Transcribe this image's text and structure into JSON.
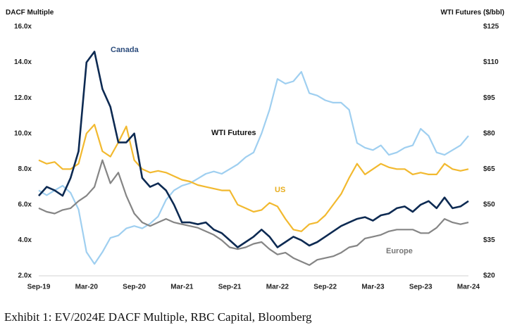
{
  "chart_data": {
    "type": "line",
    "caption": "Exhibit 1: EV/2024E DACF Multiple, RBC Capital, Bloomberg",
    "y_label": "DACF Multiple",
    "y2_label": "WTI Futures ($/bbl)",
    "categories": [
      "Sep-19",
      null,
      null,
      null,
      null,
      null,
      "Mar-20",
      null,
      null,
      null,
      null,
      null,
      "Sep-20",
      null,
      null,
      null,
      null,
      null,
      "Mar-21",
      null,
      null,
      null,
      null,
      null,
      "Sep-21",
      null,
      null,
      null,
      null,
      null,
      "Mar-22",
      null,
      null,
      null,
      null,
      null,
      "Sep-22",
      null,
      null,
      null,
      null,
      null,
      "Mar-23",
      null,
      null,
      null,
      null,
      null,
      "Sep-23",
      null,
      null,
      null,
      null,
      null,
      "Mar-24"
    ],
    "ylim": [
      2,
      16
    ],
    "yticks": [
      {
        "value": 2,
        "label": "2.0x"
      },
      {
        "value": 4,
        "label": "4.0x"
      },
      {
        "value": 6,
        "label": "6.0x"
      },
      {
        "value": 8,
        "label": "8.0x"
      },
      {
        "value": 10,
        "label": "10.0x"
      },
      {
        "value": 12,
        "label": "12.0x"
      },
      {
        "value": 14,
        "label": "14.0x"
      },
      {
        "value": 16,
        "label": "16.0x"
      }
    ],
    "y2lim": [
      20,
      125
    ],
    "y2ticks": [
      {
        "value": 20,
        "label": "$20"
      },
      {
        "value": 35,
        "label": "$35"
      },
      {
        "value": 50,
        "label": "$50"
      },
      {
        "value": 65,
        "label": "$65"
      },
      {
        "value": 80,
        "label": "$80"
      },
      {
        "value": 95,
        "label": "$95"
      },
      {
        "value": 110,
        "label": "$110"
      },
      {
        "value": 125,
        "label": "$125"
      }
    ],
    "grid": false,
    "series": [
      {
        "name": "WTI Futures",
        "color": "#9fcff0",
        "axis": "y2",
        "values": [
          56,
          54,
          56,
          58,
          55,
          48,
          30,
          25,
          30,
          36,
          37,
          40,
          41,
          40,
          42,
          45,
          52,
          56,
          58,
          59,
          61,
          63,
          64,
          63,
          65,
          67,
          70,
          72,
          80,
          90,
          103,
          101,
          102,
          106,
          97,
          96,
          94,
          93,
          93,
          90,
          76,
          74,
          73,
          75,
          71,
          72,
          74,
          75,
          82,
          79,
          72,
          71,
          73,
          75,
          79
        ]
      },
      {
        "name": "Europe",
        "color": "#858585",
        "values": [
          5.8,
          5.6,
          5.5,
          5.7,
          5.8,
          6.2,
          6.5,
          7.0,
          8.5,
          7.2,
          7.8,
          6.5,
          5.5,
          5.0,
          4.8,
          5.0,
          5.2,
          5.0,
          4.9,
          4.8,
          4.7,
          4.5,
          4.3,
          4.0,
          3.6,
          3.5,
          3.6,
          3.8,
          3.9,
          3.5,
          3.2,
          3.3,
          3.0,
          2.8,
          2.6,
          2.9,
          3.0,
          3.1,
          3.3,
          3.6,
          3.7,
          4.1,
          4.2,
          4.3,
          4.5,
          4.6,
          4.6,
          4.6,
          4.4,
          4.4,
          4.7,
          5.2,
          5.0,
          4.9,
          5.0
        ]
      },
      {
        "name": "US",
        "color": "#f2b92f",
        "values": [
          8.5,
          8.3,
          8.4,
          8.0,
          8.0,
          8.3,
          10.0,
          10.5,
          9.0,
          8.7,
          9.5,
          10.4,
          8.5,
          8.0,
          7.8,
          7.9,
          7.8,
          7.6,
          7.4,
          7.3,
          7.1,
          7.0,
          6.9,
          6.8,
          6.8,
          6.0,
          5.8,
          5.6,
          5.7,
          6.1,
          5.9,
          5.2,
          4.6,
          4.5,
          4.9,
          5.0,
          5.4,
          6.0,
          6.6,
          7.5,
          8.3,
          7.7,
          8.0,
          8.3,
          8.1,
          8.0,
          8.0,
          7.7,
          7.8,
          7.7,
          7.7,
          8.3,
          8.0,
          7.9,
          8.0
        ]
      },
      {
        "name": "Canada",
        "color": "#0d2a52",
        "values": [
          6.5,
          7.0,
          6.8,
          6.5,
          7.5,
          9.0,
          14.0,
          14.6,
          12.5,
          11.5,
          9.5,
          9.5,
          10.0,
          7.5,
          7.0,
          7.2,
          6.8,
          6.0,
          5.0,
          5.0,
          4.9,
          5.0,
          4.6,
          4.4,
          4.0,
          3.6,
          3.9,
          4.2,
          4.6,
          4.2,
          3.6,
          3.9,
          4.2,
          4.0,
          3.7,
          3.9,
          4.2,
          4.5,
          4.8,
          5.0,
          5.2,
          5.3,
          5.1,
          5.4,
          5.5,
          5.8,
          5.9,
          5.6,
          6.0,
          6.2,
          5.8,
          6.4,
          5.8,
          5.9,
          6.2
        ]
      }
    ]
  }
}
